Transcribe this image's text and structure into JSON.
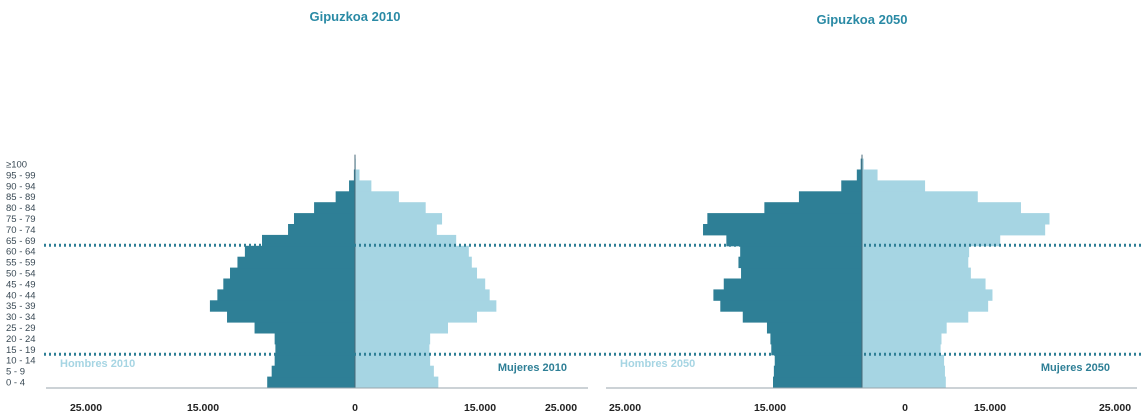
{
  "colors": {
    "men": "#2e7f96",
    "women": "#a6d5e3",
    "title": "#2a8aa5",
    "divider": "#2e7f96",
    "legend_men": "#a6d5e3",
    "legend_women": "#2e7f96"
  },
  "chart_data": [
    {
      "type": "bar",
      "orientation": "population-pyramid",
      "title": "Gipuzkoa 2010",
      "categories": [
        "0 - 4",
        "5 - 9",
        "10 - 14",
        "15 - 19",
        "20 - 24",
        "25 - 29",
        "30 - 34",
        "35 - 39",
        "40 - 44",
        "45 - 49",
        "50 - 54",
        "55 - 59",
        "60 - 64",
        "65 - 69",
        "70 - 74",
        "75 - 79",
        "80 - 84",
        "85 - 89",
        "90 - 94",
        "95 - 99",
        "≥100"
      ],
      "series": [
        {
          "name": "Hombres 2010",
          "side": "left",
          "values": [
            11800,
            11200,
            10800,
            10700,
            10800,
            13500,
            17200,
            19500,
            18500,
            17700,
            16800,
            15800,
            14800,
            12500,
            9000,
            8200,
            5500,
            2600,
            800,
            150,
            20
          ]
        },
        {
          "name": "Mujeres 2010",
          "side": "right",
          "values": [
            11200,
            10600,
            10100,
            10000,
            10100,
            12500,
            16400,
            19000,
            18100,
            17500,
            16400,
            15700,
            15300,
            13600,
            11000,
            11700,
            9500,
            5900,
            2200,
            600,
            100
          ]
        }
      ],
      "xticks": [
        "25.000",
        "15.000",
        "0",
        "15.000",
        "25.000"
      ],
      "xlim": [
        -25000,
        25000
      ],
      "dividers_after": [
        "10 - 14",
        "60 - 64"
      ]
    },
    {
      "type": "bar",
      "orientation": "population-pyramid",
      "title": "Gipuzkoa 2050",
      "categories": [
        "0 - 4",
        "5 - 9",
        "10 - 14",
        "15 - 19",
        "20 - 24",
        "25 - 29",
        "30 - 34",
        "35 - 39",
        "40 - 44",
        "45 - 49",
        "50 - 54",
        "55 - 59",
        "60 - 64",
        "65 - 69",
        "70 - 74",
        "75 - 79",
        "80 - 84",
        "85 - 89",
        "90 - 94",
        "95 - 99",
        "≥100"
      ],
      "series": [
        {
          "name": "Hombres 2050",
          "side": "left",
          "values": [
            10300,
            10200,
            10100,
            10500,
            10600,
            11000,
            13800,
            16400,
            17200,
            16000,
            14000,
            14300,
            14100,
            15700,
            18400,
            17900,
            11300,
            7300,
            2400,
            600,
            150
          ]
        },
        {
          "name": "Mujeres 2050",
          "side": "right",
          "values": [
            9700,
            9600,
            9500,
            9100,
            9200,
            9800,
            12300,
            14600,
            15100,
            14300,
            12600,
            12300,
            12400,
            16000,
            21200,
            21700,
            18400,
            13400,
            7300,
            1800,
            200
          ]
        }
      ],
      "xticks": [
        "25.000",
        "15.000",
        "0",
        "15.000",
        "25.000"
      ],
      "xlim": [
        -25000,
        25000
      ],
      "dividers_after": [
        "10 - 14",
        "60 - 64"
      ]
    }
  ]
}
